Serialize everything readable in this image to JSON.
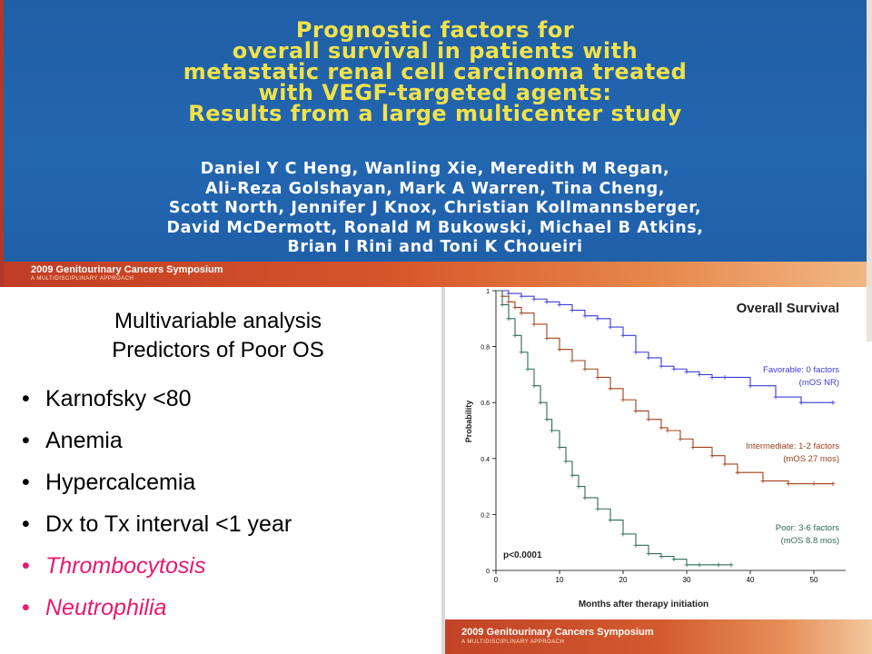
{
  "banner": {
    "title": "Prognostic factors for\noverall survival in patients with\nmetastatic renal cell carcinoma treated\nwith VEGF-targeted agents:\nResults from a large multicenter study",
    "authors": "Daniel Y C Heng, Wanling Xie, Meredith M Regan,\nAli-Reza Golshayan, Mark A Warren, Tina Cheng,\nScott North, Jennifer J Knox, Christian Kollmannsberger,\nDavid McDermott, Ronald M Bukowski, Michael B Atkins,\nBrian I Rini and Toni K Choueiri",
    "symposium": "2009 Genitourinary Cancers Symposium",
    "tagline": "A MULTIDISCIPLINARY APPROACH"
  },
  "analysis": {
    "heading": "Multivariable analysis\n Predictors of Poor OS",
    "predictors": [
      {
        "label": "Karnofsky <80",
        "highlight": false
      },
      {
        "label": "Anemia",
        "highlight": false
      },
      {
        "label": "Hypercalcemia",
        "highlight": false
      },
      {
        "label": "Dx to Tx interval <1 year",
        "highlight": false
      },
      {
        "label": "Thrombocytosis",
        "highlight": true
      },
      {
        "label": "Neutrophilia",
        "highlight": true
      }
    ],
    "bullet": "•",
    "highlight_color": "#e8196e"
  },
  "chart_footer": {
    "symposium": "2009 Genitourinary Cancers Symposium",
    "tagline": "A MULTIDISCIPLINARY APPROACH"
  },
  "chart_data": {
    "type": "line",
    "title": "Overall Survival",
    "xlabel": "Months after therapy initiation",
    "ylabel": "Probability",
    "xlim": [
      0,
      55
    ],
    "ylim": [
      0,
      1
    ],
    "x_ticks": [
      0,
      10,
      20,
      30,
      40,
      50
    ],
    "y_ticks": [
      0,
      0.2,
      0.4,
      0.6,
      0.8,
      1
    ],
    "y_tick_labels": [
      "0",
      "0.2",
      "0.4",
      "0.6",
      "0.8",
      "1"
    ],
    "grid": false,
    "annotation": "p<0.0001",
    "series": [
      {
        "name": "Favorable: 0 factors",
        "median_label": "(mOS NR)",
        "color": "#3b3bd6",
        "x": [
          0,
          2,
          4,
          6,
          8,
          10,
          12,
          14,
          16,
          18,
          20,
          22,
          24,
          26,
          28,
          30,
          32,
          34,
          36,
          40,
          44,
          48,
          53
        ],
        "y": [
          1.0,
          0.99,
          0.98,
          0.97,
          0.96,
          0.95,
          0.93,
          0.91,
          0.9,
          0.87,
          0.84,
          0.78,
          0.76,
          0.73,
          0.72,
          0.71,
          0.7,
          0.69,
          0.69,
          0.66,
          0.62,
          0.6,
          0.6
        ]
      },
      {
        "name": "Intermediate: 1-2 factors",
        "median_label": "(mOS 27 mos)",
        "color": "#a0401a",
        "x": [
          0,
          1,
          2,
          3,
          4,
          6,
          8,
          10,
          12,
          14,
          16,
          18,
          20,
          22,
          24,
          26,
          27,
          29,
          31,
          34,
          36,
          38,
          42,
          46,
          50,
          53
        ],
        "y": [
          1.0,
          0.98,
          0.96,
          0.94,
          0.92,
          0.88,
          0.83,
          0.79,
          0.75,
          0.72,
          0.69,
          0.65,
          0.61,
          0.57,
          0.54,
          0.51,
          0.5,
          0.47,
          0.44,
          0.41,
          0.38,
          0.35,
          0.32,
          0.31,
          0.31,
          0.31
        ]
      },
      {
        "name": "Poor: 3-6 factors",
        "median_label": "(mOS 8.8 mos)",
        "color": "#2f6a5a",
        "x": [
          0,
          1,
          2,
          3,
          4,
          5,
          6,
          7,
          8,
          8.8,
          10,
          11,
          12,
          13,
          14,
          16,
          18,
          20,
          22,
          24,
          26,
          28,
          30,
          32,
          35,
          37
        ],
        "y": [
          1.0,
          0.95,
          0.9,
          0.84,
          0.78,
          0.72,
          0.66,
          0.6,
          0.54,
          0.5,
          0.44,
          0.39,
          0.34,
          0.3,
          0.26,
          0.22,
          0.18,
          0.13,
          0.09,
          0.06,
          0.05,
          0.04,
          0.02,
          0.02,
          0.02,
          0.02
        ]
      }
    ]
  }
}
